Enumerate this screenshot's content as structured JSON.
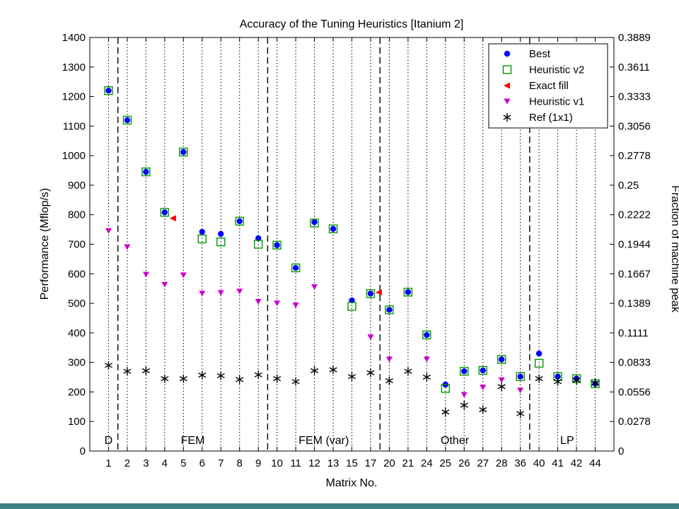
{
  "chart_data": {
    "type": "scatter",
    "title": "Accuracy of the Tuning Heuristics [Itanium 2]",
    "xlabel": "Matrix No.",
    "ylabel": "Performance (Mflop/s)",
    "y2label": "Fraction of machine peak",
    "categories": [
      "1",
      "2",
      "3",
      "4",
      "5",
      "6",
      "7",
      "8",
      "9",
      "10",
      "11",
      "12",
      "13",
      "15",
      "17",
      "20",
      "21",
      "24",
      "25",
      "26",
      "27",
      "28",
      "36",
      "40",
      "41",
      "42",
      "44"
    ],
    "ylim": [
      0,
      1400
    ],
    "yticks": [
      0,
      100,
      200,
      300,
      400,
      500,
      600,
      700,
      800,
      900,
      1000,
      1100,
      1200,
      1300,
      1400
    ],
    "y2ticks": [
      "0",
      "0.0278",
      "0.0556",
      "0.0833",
      "0.1111",
      "0.1389",
      "0.1667",
      "0.1944",
      "0.2222",
      "0.25",
      "0.2778",
      "0.3056",
      "0.3333",
      "0.3611",
      "0.3889"
    ],
    "grid": "vertical-dotted",
    "legend_position": "top-right",
    "groups": [
      {
        "label": "D",
        "start": 0,
        "end": 0
      },
      {
        "label": "FEM",
        "start": 1,
        "end": 8
      },
      {
        "label": "FEM (var)",
        "start": 9,
        "end": 14
      },
      {
        "label": "Other",
        "start": 15,
        "end": 22
      },
      {
        "label": "LP",
        "start": 23,
        "end": 26
      }
    ],
    "group_separators_after": [
      0,
      8,
      14,
      22
    ],
    "series": [
      {
        "name": "Best",
        "marker": "circle",
        "color": "#0000ff",
        "values": [
          1220,
          1120,
          945,
          808,
          1012,
          742,
          735,
          778,
          720,
          697,
          620,
          775,
          752,
          510,
          533,
          478,
          538,
          393,
          225,
          270,
          273,
          310,
          252,
          330,
          252,
          245,
          228
        ]
      },
      {
        "name": "Heuristic v2",
        "marker": "square",
        "color": "#009900",
        "values": [
          1220,
          1120,
          945,
          808,
          1012,
          718,
          708,
          778,
          700,
          697,
          620,
          772,
          752,
          490,
          533,
          478,
          538,
          393,
          212,
          270,
          273,
          310,
          252,
          297,
          252,
          245,
          228
        ]
      },
      {
        "name": "Exact fill",
        "marker": "triangle-left",
        "color": "#ff0000",
        "values": [
          1220,
          1120,
          945,
          788,
          1012,
          742,
          735,
          778,
          720,
          697,
          620,
          775,
          752,
          510,
          537,
          478,
          538,
          393,
          225,
          270,
          273,
          310,
          252,
          330,
          252,
          245,
          228
        ]
      },
      {
        "name": "Heuristic v1",
        "marker": "triangle-down",
        "color": "#cc00cc",
        "values": [
          745,
          690,
          597,
          563,
          595,
          533,
          535,
          540,
          505,
          500,
          493,
          555,
          null,
          null,
          385,
          310,
          null,
          310,
          null,
          190,
          215,
          240,
          205,
          null,
          null,
          null,
          null
        ]
      },
      {
        "name": "Ref (1x1)",
        "marker": "asterisk",
        "color": "#000000",
        "values": [
          290,
          270,
          272,
          245,
          245,
          257,
          255,
          242,
          258,
          245,
          235,
          272,
          275,
          252,
          265,
          238,
          270,
          250,
          132,
          155,
          140,
          218,
          127,
          245,
          235,
          240,
          230
        ]
      }
    ]
  }
}
